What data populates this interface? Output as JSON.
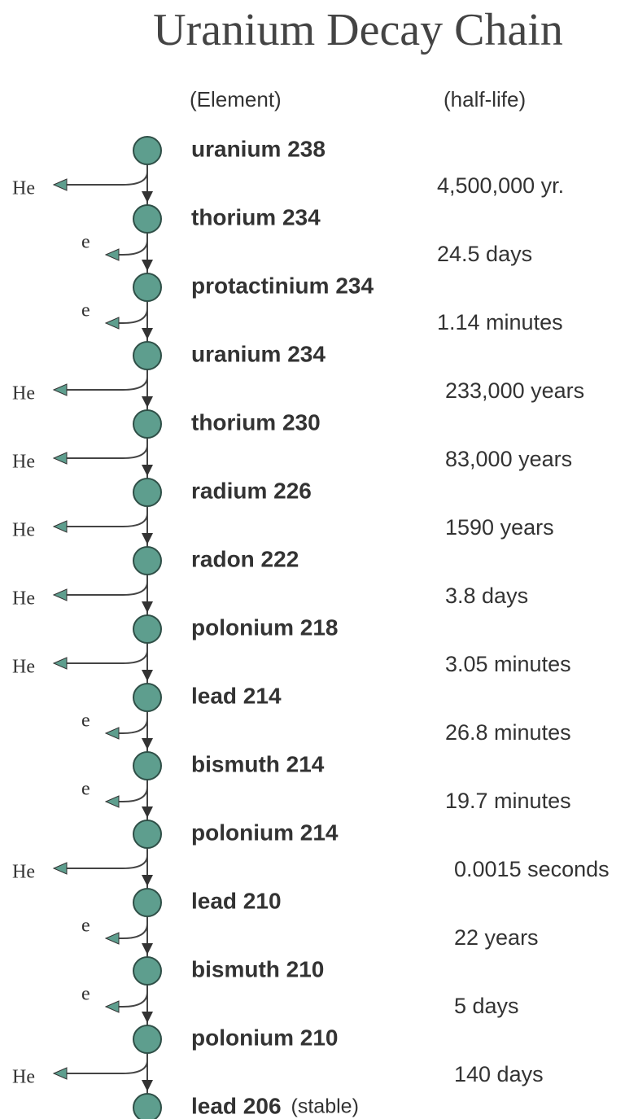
{
  "title": "Uranium Decay Chain",
  "headers": {
    "element": "(Element)",
    "half_life": "(half-life)"
  },
  "elements": [
    "uranium 238",
    "thorium 234",
    "protactinium 234",
    "uranium 234",
    "thorium 230",
    "radium 226",
    "radon 222",
    "polonium 218",
    "lead 214",
    "bismuth 214",
    "polonium 214",
    "lead 210",
    "bismuth 210",
    "polonium 210",
    "lead 206"
  ],
  "stable_note": "(stable)",
  "half_lives": [
    "4,500,000 yr.",
    "24.5 days",
    "1.14 minutes",
    "233,000 years",
    "83,000 years",
    "1590 years",
    "3.8 days",
    "3.05 minutes",
    "26.8 minutes",
    "19.7 minutes",
    "0.0015 seconds",
    "22 years",
    "5 days",
    "140 days"
  ],
  "emissions": [
    "He",
    "e",
    "e",
    "He",
    "He",
    "He",
    "He",
    "He",
    "e",
    "e",
    "He",
    "e",
    "e",
    "He"
  ]
}
